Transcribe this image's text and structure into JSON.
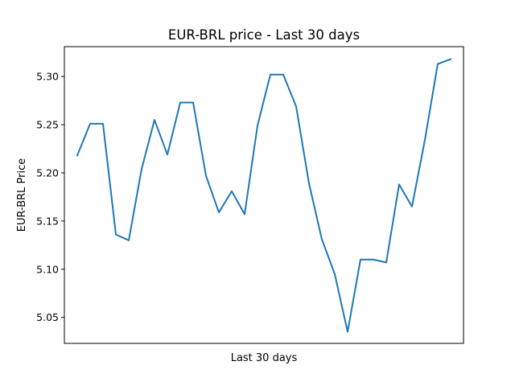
{
  "chart_data": {
    "type": "line",
    "title": "EUR-BRL price - Last 30 days",
    "xlabel": "Last 30 days",
    "ylabel": "EUR-BRL Price",
    "x": [
      1,
      2,
      3,
      4,
      5,
      6,
      7,
      8,
      9,
      10,
      11,
      12,
      13,
      14,
      15,
      16,
      17,
      18,
      19,
      20,
      21,
      22,
      23,
      24,
      25,
      26,
      27,
      28,
      29,
      30
    ],
    "xlim": [
      0,
      31
    ],
    "x_ticks_visible": false,
    "ylim": [
      5.023,
      5.331
    ],
    "y_ticks": [
      "5.05",
      "5.10",
      "5.15",
      "5.20",
      "5.25",
      "5.30"
    ],
    "grid": false,
    "series": [
      {
        "color": "#1f77b4",
        "values": [
          5.218,
          5.251,
          5.251,
          5.136,
          5.13,
          5.204,
          5.255,
          5.219,
          5.273,
          5.273,
          5.197,
          5.159,
          5.181,
          5.157,
          5.249,
          5.302,
          5.302,
          5.269,
          5.189,
          5.131,
          5.095,
          5.035,
          5.11,
          5.11,
          5.107,
          5.188,
          5.165,
          5.234,
          5.313,
          5.318
        ]
      }
    ]
  }
}
